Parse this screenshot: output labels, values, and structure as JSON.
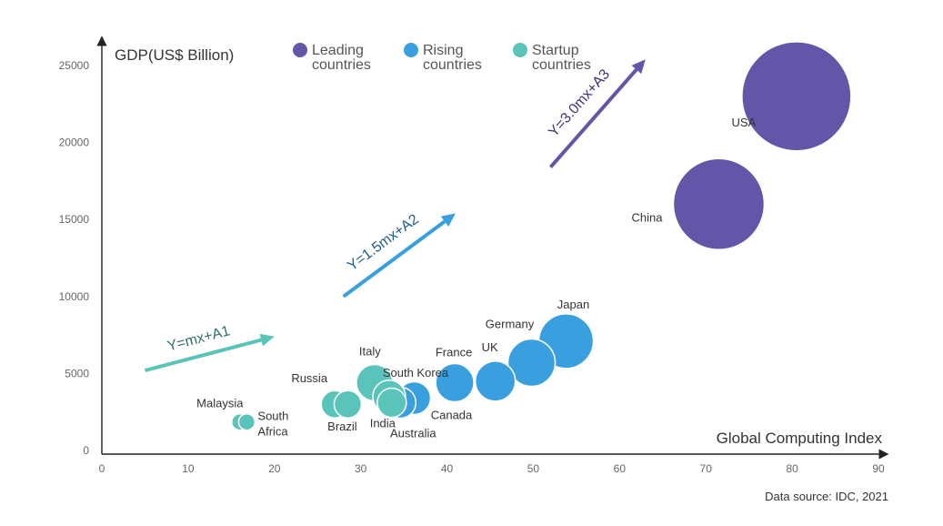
{
  "chart_data": {
    "type": "scatter",
    "subtype": "bubble",
    "title": "",
    "xlabel": "Global Computing Index",
    "ylabel": "GDP(US$ Billion)",
    "xlim": [
      0,
      90
    ],
    "ylim": [
      0,
      25000
    ],
    "x_ticks": [
      0,
      10,
      20,
      30,
      40,
      50,
      60,
      70,
      80,
      90
    ],
    "y_ticks": [
      0,
      5000,
      10000,
      15000,
      20000,
      25000
    ],
    "y_tick_labels": [
      "0",
      "5000",
      "10000",
      "15000",
      "20000",
      "25000"
    ],
    "grid": false,
    "legend_position": "top",
    "source": "Data source: IDC, 2021",
    "colors": {
      "leading": "#6356A8",
      "rising": "#3A9FDF",
      "startup": "#5BC4BA",
      "axis": "#222222"
    },
    "series": [
      {
        "name": "Leading countries",
        "legend_label": [
          "Leading",
          "countries"
        ],
        "color": "#6356A8",
        "points": [
          {
            "label": "USA",
            "x": 80.5,
            "y": 23000,
            "size": 60
          },
          {
            "label": "China",
            "x": 71.5,
            "y": 16000,
            "size": 50
          }
        ]
      },
      {
        "name": "Rising countries",
        "legend_label": [
          "Rising",
          "countries"
        ],
        "color": "#3A9FDF",
        "points": [
          {
            "label": "Japan",
            "x": 53.8,
            "y": 7100,
            "size": 30
          },
          {
            "label": "Germany",
            "x": 49.8,
            "y": 5700,
            "size": 26
          },
          {
            "label": "UK",
            "x": 45.6,
            "y": 4500,
            "size": 22
          },
          {
            "label": "France",
            "x": 40.9,
            "y": 4400,
            "size": 21
          },
          {
            "label": "Canada",
            "x": 36.2,
            "y": 3400,
            "size": 18
          },
          {
            "label": "Australia",
            "x": 34.6,
            "y": 3100,
            "size": 17
          }
        ]
      },
      {
        "name": "Startup countries",
        "legend_label": [
          "Startup",
          "countries"
        ],
        "color": "#5BC4BA",
        "points": [
          {
            "label": "Italy",
            "x": 31.6,
            "y": 4400,
            "size": 20
          },
          {
            "label": "South Korea",
            "x": 33.3,
            "y": 3500,
            "size": 18
          },
          {
            "label": "India",
            "x": 33.6,
            "y": 3100,
            "size": 16
          },
          {
            "label": "Russia",
            "x": 27.0,
            "y": 3000,
            "size": 15
          },
          {
            "label": "Brazil",
            "x": 28.5,
            "y": 3000,
            "size": 15
          },
          {
            "label": "Malaysia",
            "x": 16.0,
            "y": 1850,
            "size": 9
          },
          {
            "label": "South Africa",
            "x": 16.8,
            "y": 1850,
            "size": 9
          }
        ]
      }
    ],
    "annotations": [
      {
        "text": "Y=mx+A1",
        "color": "#5BC4BA",
        "from": [
          5,
          5200
        ],
        "to": [
          20,
          7400
        ]
      },
      {
        "text": "Y=1.5mx+A2",
        "color": "#3A9FDF",
        "from": [
          28,
          10000
        ],
        "to": [
          41,
          15400
        ]
      },
      {
        "text": "Y=3.0mx+A3",
        "color": "#6356A8",
        "from": [
          52,
          18400
        ],
        "to": [
          63,
          25400
        ]
      }
    ]
  }
}
